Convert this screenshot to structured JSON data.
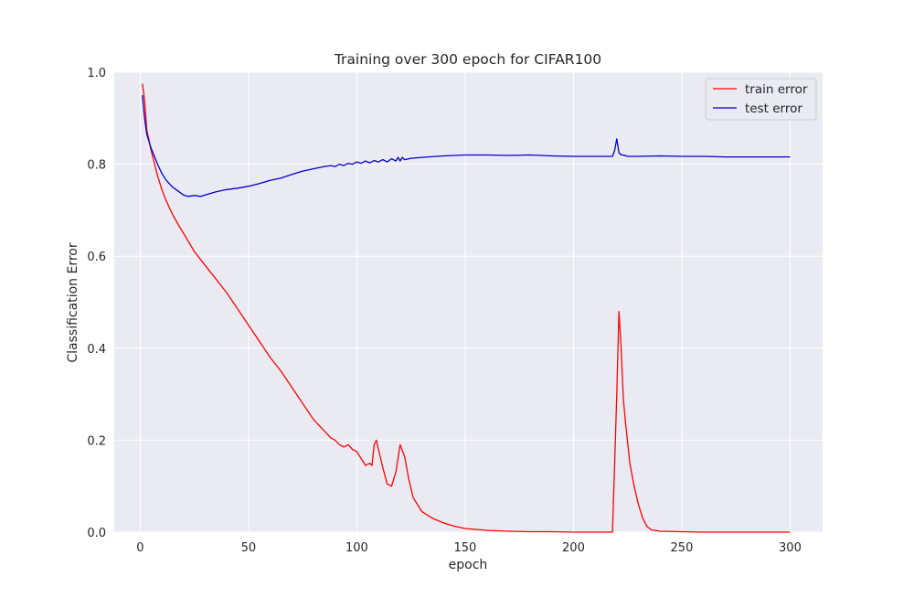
{
  "chart_data": {
    "type": "line",
    "title": "Training over 300 epoch for CIFAR100",
    "xlabel": "epoch",
    "ylabel": "Classification Error",
    "xlim": [
      -12,
      315
    ],
    "ylim": [
      0.0,
      1.0
    ],
    "xticks": [
      0,
      50,
      100,
      150,
      200,
      250,
      300
    ],
    "yticks": [
      0.0,
      0.2,
      0.4,
      0.6,
      0.8,
      1.0
    ],
    "xtick_labels": [
      "0",
      "50",
      "100",
      "150",
      "200",
      "250",
      "300"
    ],
    "ytick_labels": [
      "0.0",
      "0.2",
      "0.4",
      "0.6",
      "0.8",
      "1.0"
    ],
    "grid": true,
    "legend_position": "top-right",
    "series": [
      {
        "name": "train error",
        "color": "#ff0000",
        "x": [
          1,
          2,
          3,
          5,
          8,
          10,
          12,
          15,
          18,
          20,
          25,
          30,
          35,
          40,
          45,
          50,
          55,
          60,
          65,
          70,
          75,
          80,
          85,
          88,
          90,
          92,
          94,
          96,
          98,
          100,
          102,
          104,
          106,
          107,
          108,
          109,
          110,
          112,
          114,
          116,
          118,
          120,
          122,
          124,
          126,
          130,
          135,
          140,
          145,
          150,
          160,
          170,
          180,
          190,
          200,
          210,
          218,
          219,
          220,
          221,
          222,
          223,
          224,
          226,
          228,
          230,
          232,
          234,
          236,
          240,
          250,
          260,
          280,
          300
        ],
        "y": [
          0.975,
          0.94,
          0.875,
          0.83,
          0.775,
          0.745,
          0.72,
          0.69,
          0.665,
          0.65,
          0.61,
          0.58,
          0.55,
          0.52,
          0.485,
          0.45,
          0.415,
          0.38,
          0.35,
          0.315,
          0.28,
          0.245,
          0.22,
          0.205,
          0.2,
          0.19,
          0.185,
          0.19,
          0.18,
          0.175,
          0.16,
          0.145,
          0.15,
          0.145,
          0.19,
          0.2,
          0.18,
          0.14,
          0.105,
          0.1,
          0.13,
          0.19,
          0.165,
          0.115,
          0.075,
          0.045,
          0.03,
          0.02,
          0.013,
          0.008,
          0.004,
          0.002,
          0.001,
          0.001,
          0.0,
          0.0,
          0.0,
          0.15,
          0.3,
          0.48,
          0.4,
          0.29,
          0.24,
          0.15,
          0.1,
          0.06,
          0.03,
          0.012,
          0.005,
          0.002,
          0.001,
          0.0,
          0.0,
          0.0
        ]
      },
      {
        "name": "test error",
        "color": "#0000cc",
        "x": [
          1,
          2,
          3,
          5,
          8,
          10,
          12,
          15,
          18,
          20,
          22,
          25,
          28,
          30,
          35,
          40,
          45,
          50,
          55,
          60,
          65,
          70,
          75,
          80,
          85,
          88,
          90,
          92,
          94,
          96,
          98,
          100,
          102,
          104,
          106,
          108,
          110,
          112,
          114,
          116,
          118,
          119,
          120,
          121,
          122,
          125,
          130,
          140,
          150,
          160,
          170,
          180,
          190,
          200,
          210,
          218,
          219,
          220,
          221,
          222,
          223,
          225,
          230,
          240,
          250,
          260,
          270,
          280,
          290,
          300
        ],
        "y": [
          0.95,
          0.9,
          0.865,
          0.835,
          0.8,
          0.78,
          0.765,
          0.75,
          0.74,
          0.733,
          0.73,
          0.732,
          0.73,
          0.733,
          0.74,
          0.745,
          0.748,
          0.752,
          0.758,
          0.765,
          0.77,
          0.778,
          0.785,
          0.79,
          0.795,
          0.797,
          0.795,
          0.8,
          0.797,
          0.802,
          0.8,
          0.805,
          0.802,
          0.807,
          0.803,
          0.808,
          0.805,
          0.81,
          0.805,
          0.812,
          0.807,
          0.815,
          0.807,
          0.815,
          0.81,
          0.813,
          0.815,
          0.818,
          0.82,
          0.82,
          0.819,
          0.82,
          0.818,
          0.817,
          0.817,
          0.817,
          0.83,
          0.855,
          0.825,
          0.82,
          0.82,
          0.817,
          0.817,
          0.818,
          0.817,
          0.817,
          0.816,
          0.816,
          0.816,
          0.816
        ]
      }
    ]
  }
}
